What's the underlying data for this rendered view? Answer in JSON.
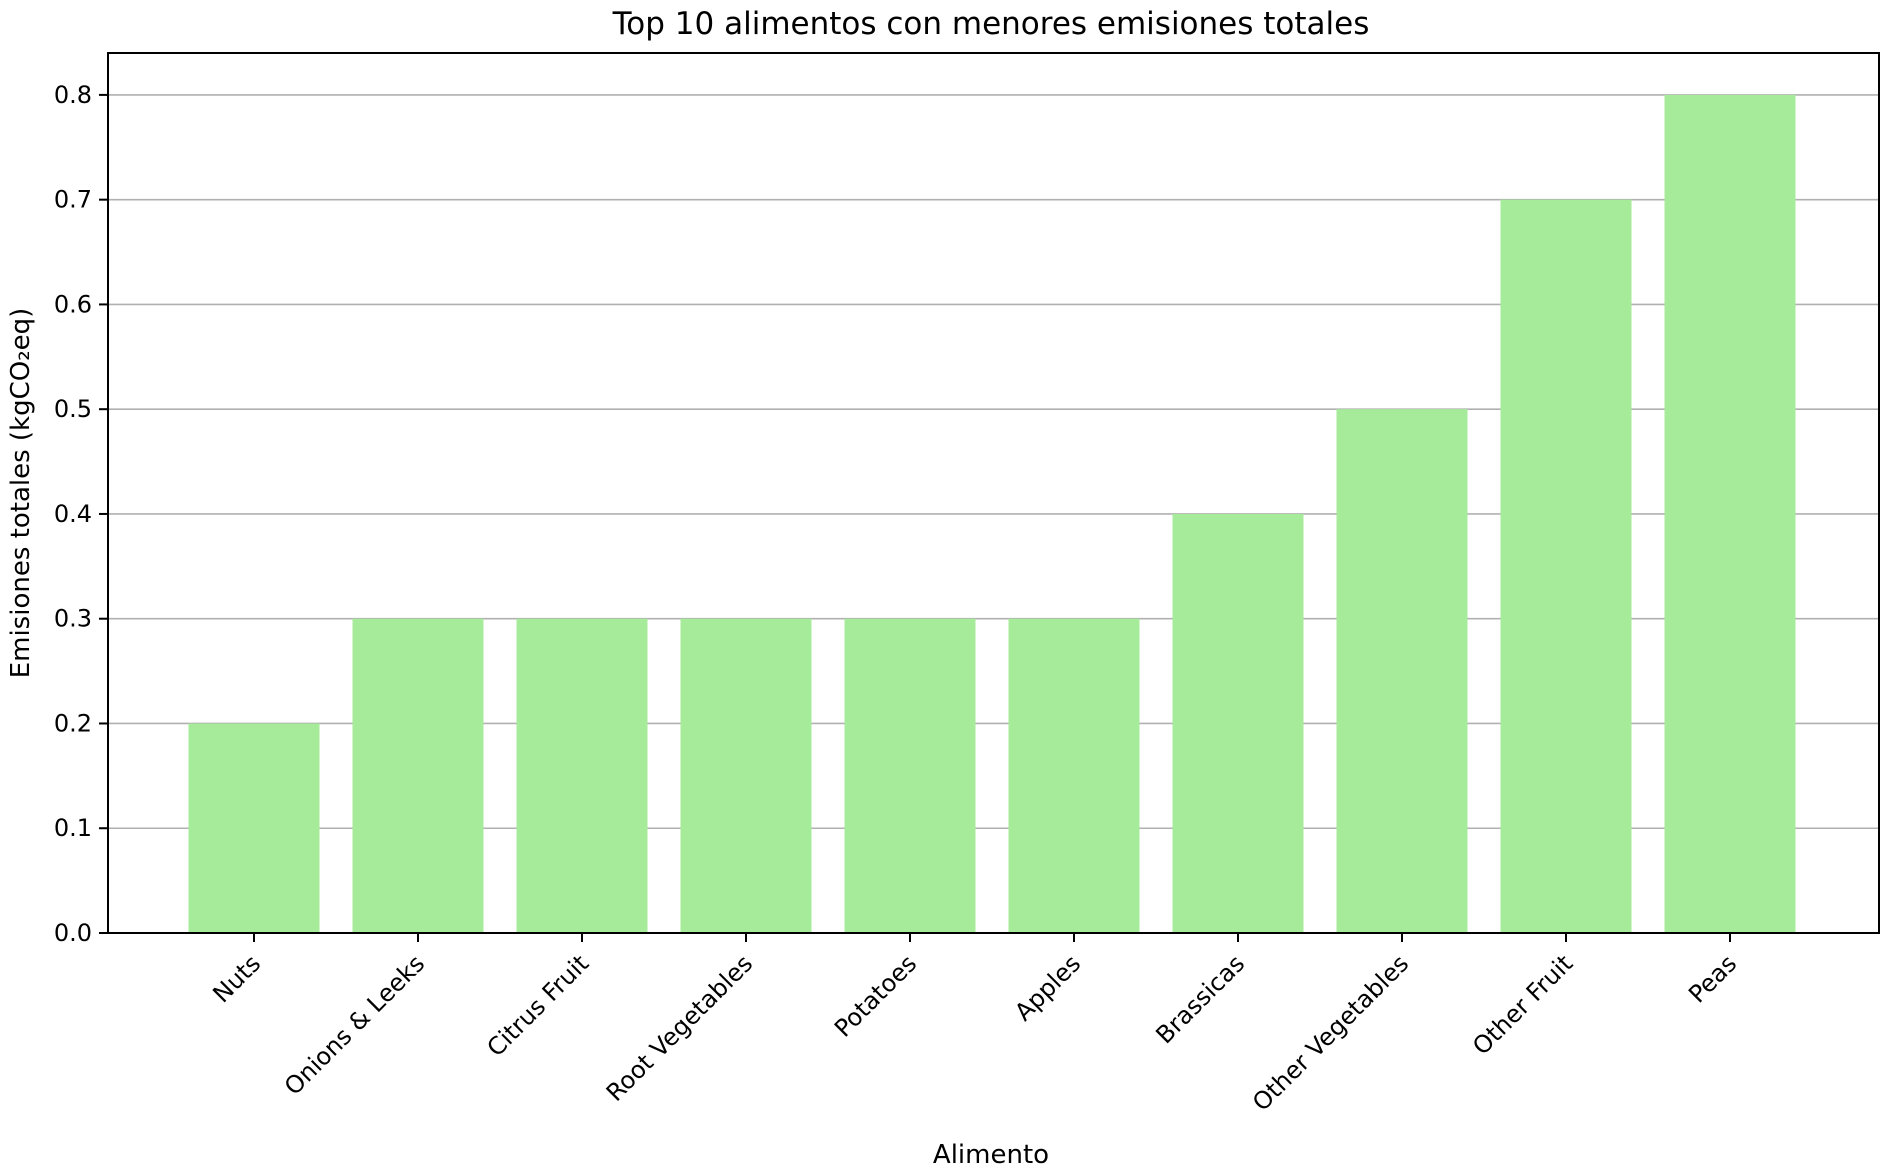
{
  "chart_data": {
    "type": "bar",
    "title": "Top 10 alimentos con menores emisiones totales",
    "xlabel": "Alimento",
    "ylabel": "Emisiones totales (kgCO₂eq)",
    "categories": [
      "Nuts",
      "Onions & Leeks",
      "Citrus Fruit",
      "Root Vegetables",
      "Potatoes",
      "Apples",
      "Brassicas",
      "Other Vegetables",
      "Other Fruit",
      "Peas"
    ],
    "values": [
      0.2,
      0.3,
      0.3,
      0.3,
      0.3,
      0.3,
      0.4,
      0.5,
      0.7,
      0.8
    ],
    "ylim": [
      0.0,
      0.84
    ],
    "yticks": [
      "0.0",
      "0.1",
      "0.2",
      "0.3",
      "0.4",
      "0.5",
      "0.6",
      "0.7",
      "0.8"
    ],
    "grid": "y",
    "bar_color": "#a6eb99",
    "grid_color": "#b0b0b0"
  }
}
